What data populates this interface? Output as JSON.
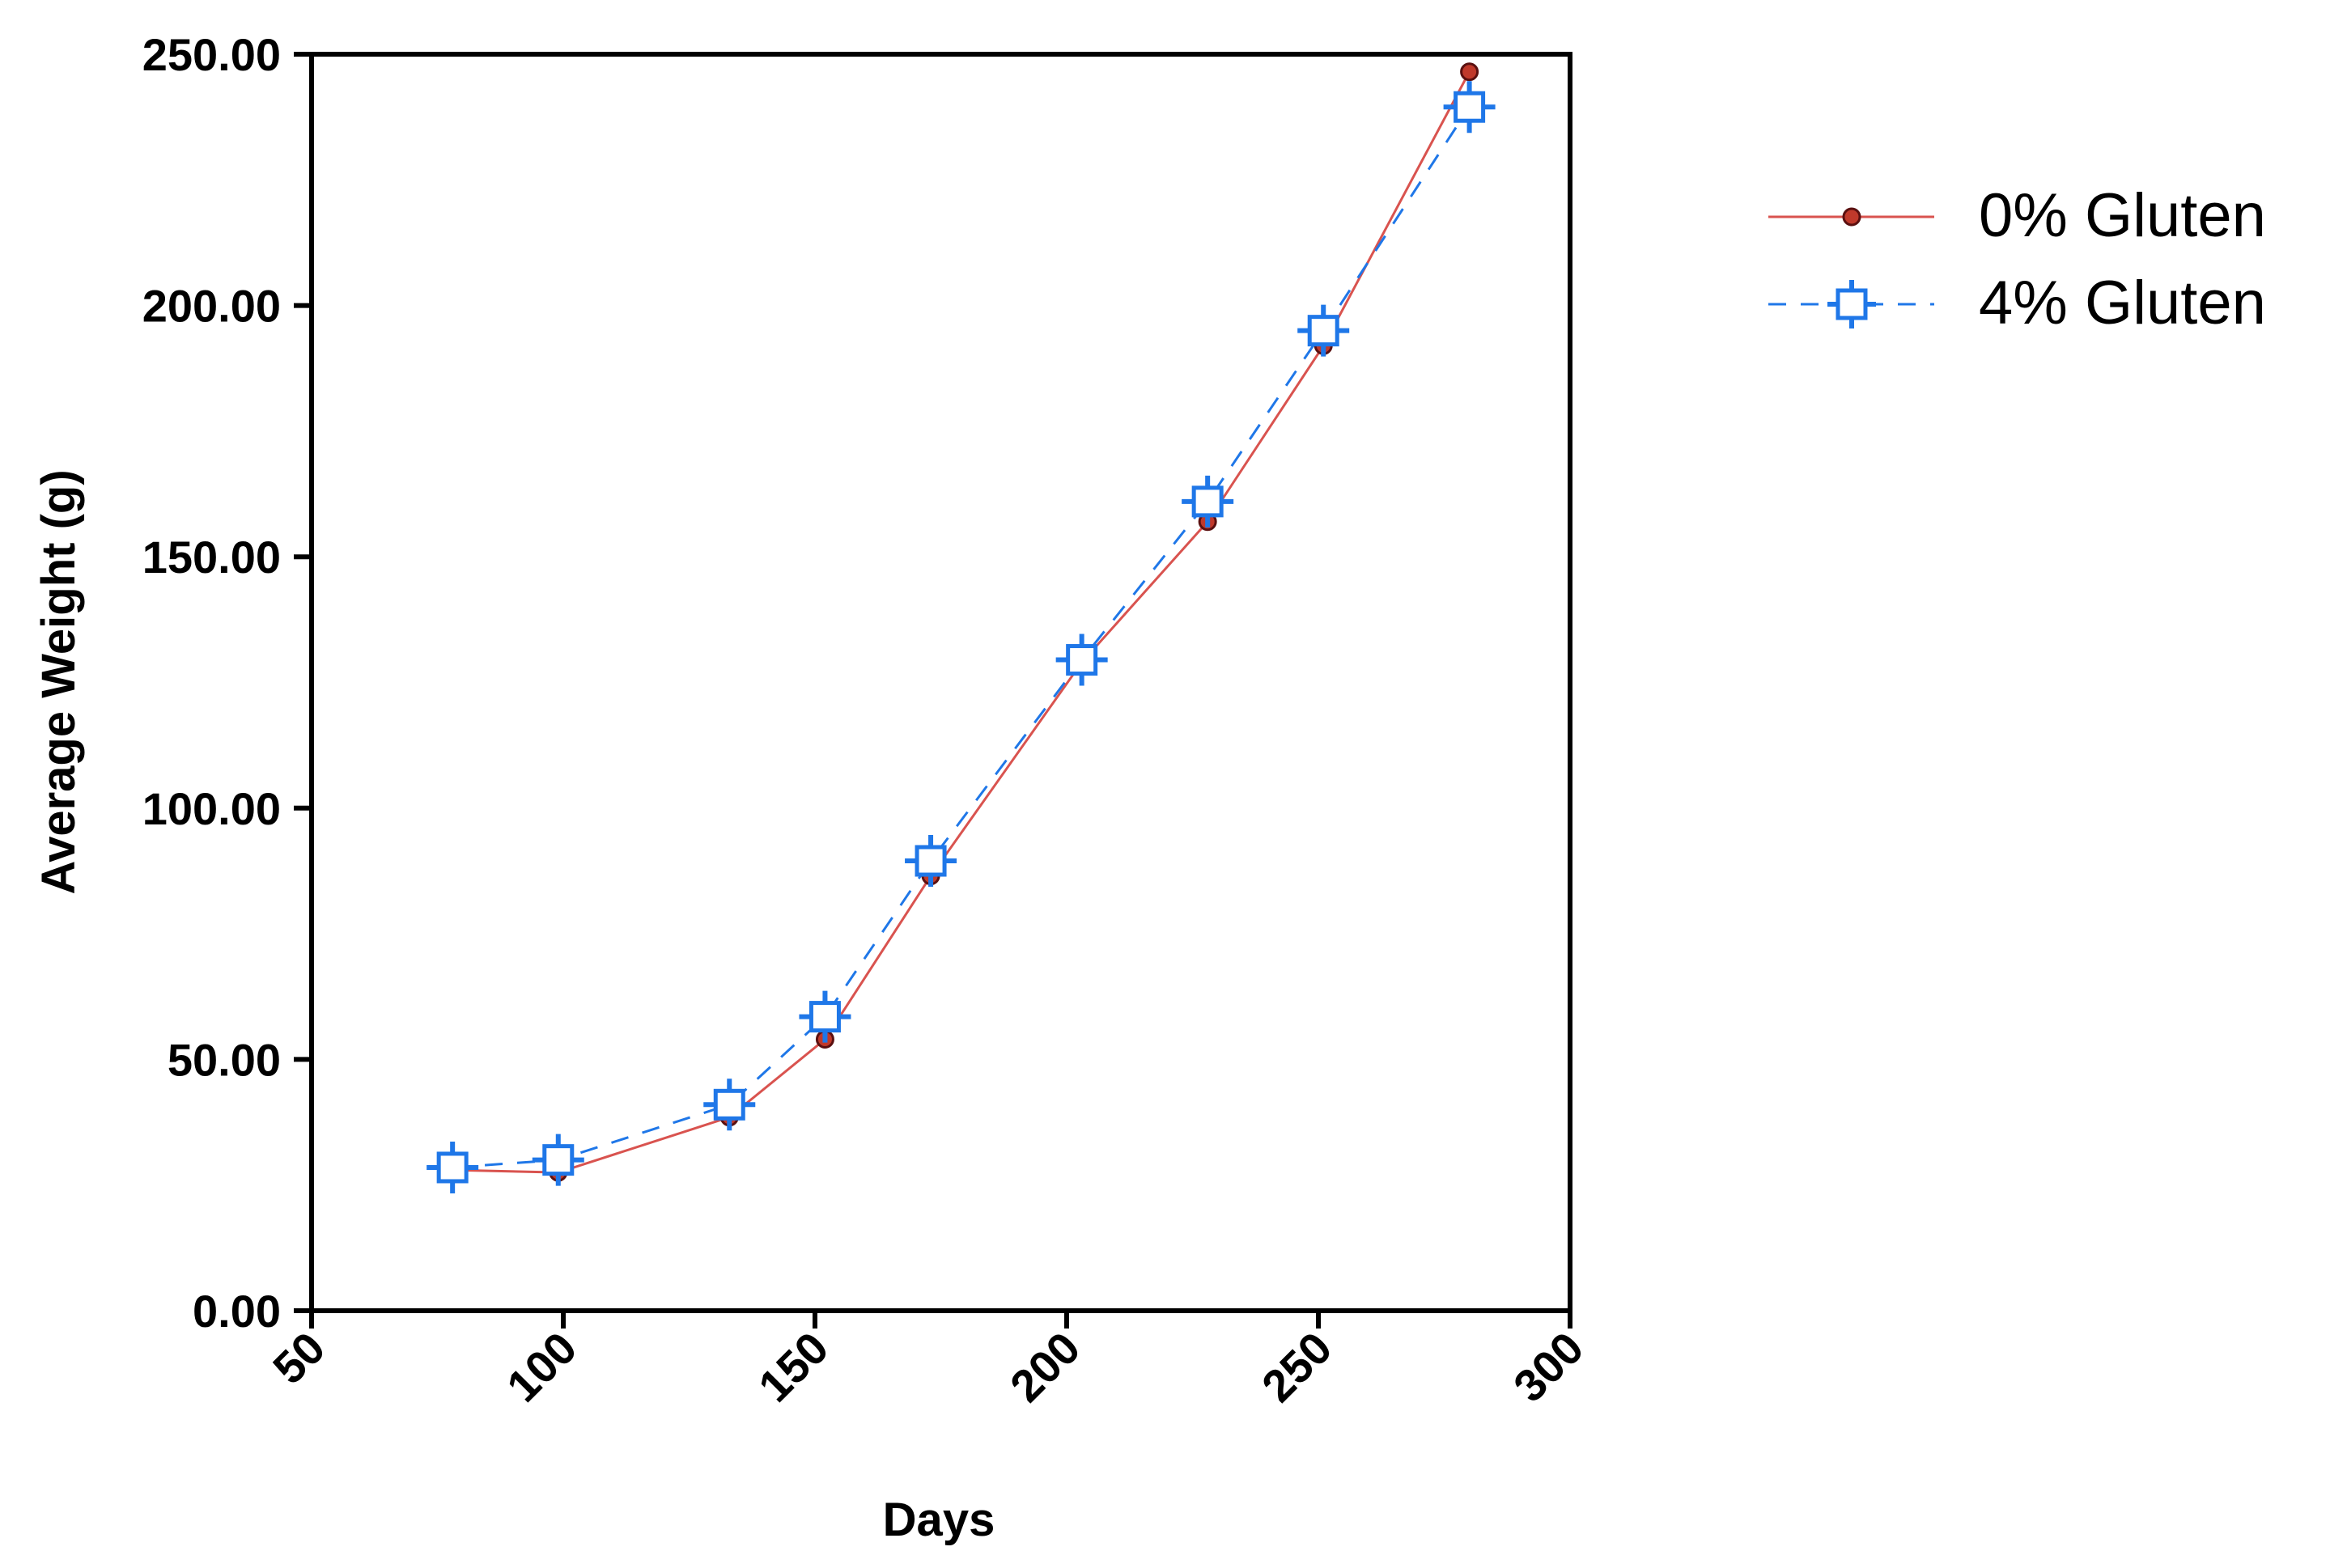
{
  "chart_data": {
    "type": "line",
    "xlabel": "Days",
    "ylabel": "Average Weight (g)",
    "xlim": [
      50,
      300
    ],
    "ylim": [
      0,
      250
    ],
    "x_ticks": [
      "50",
      "100",
      "150",
      "200",
      "250",
      "300"
    ],
    "y_ticks": [
      "0.00",
      "50.00",
      "100.00",
      "150.00",
      "200.00",
      "250.00"
    ],
    "grid": false,
    "legend_position": "right-top",
    "series": [
      {
        "name": "0% Gluten",
        "color": "#d9534f",
        "marker": "filled-circle",
        "line_style": "solid",
        "x": [
          78,
          99,
          133,
          152,
          173,
          203,
          228,
          251,
          280
        ],
        "y": [
          28.0,
          27.5,
          38.5,
          54.0,
          86.5,
          129.0,
          157.0,
          192.0,
          246.5
        ]
      },
      {
        "name": "4% Gluten",
        "color": "#1f77e8",
        "marker": "open-square-crosshair",
        "line_style": "dashed",
        "x": [
          78,
          99,
          133,
          152,
          173,
          203,
          228,
          251,
          280
        ],
        "y": [
          28.5,
          30.0,
          41.0,
          58.5,
          89.5,
          129.5,
          161.0,
          195.0,
          239.5
        ]
      }
    ]
  }
}
